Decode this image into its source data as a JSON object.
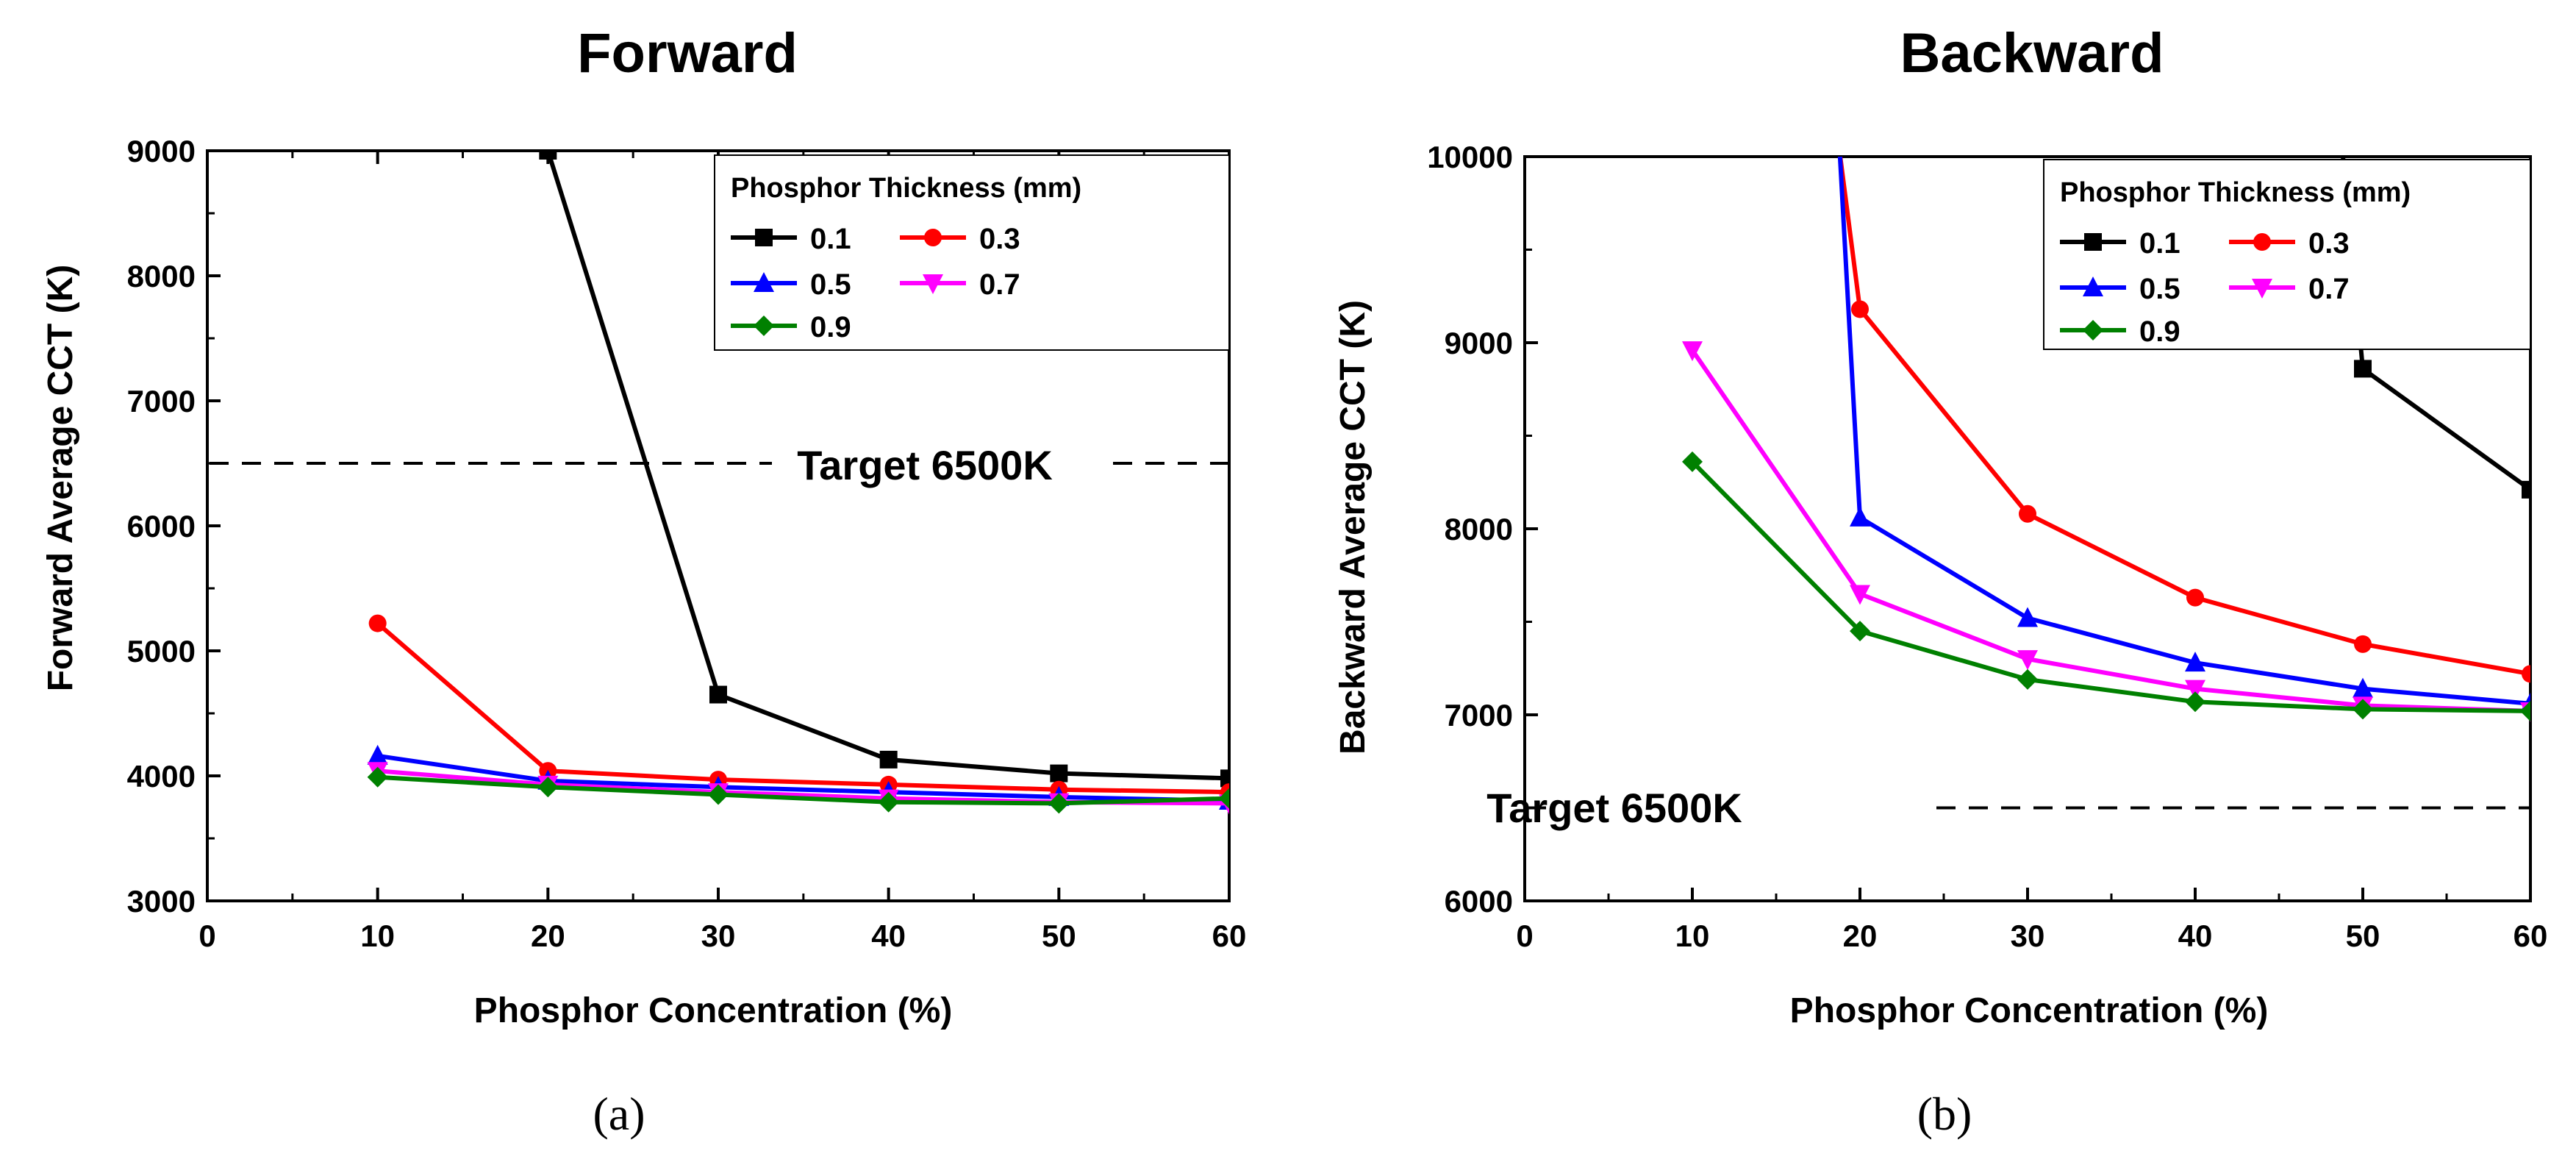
{
  "chart_data": [
    {
      "type": "line",
      "id": "a",
      "title": "Forward",
      "sublabel": "(a)",
      "xlabel": "Phosphor Concentration (%)",
      "ylabel": "Forward Average CCT (K)",
      "xlim": [
        0,
        60
      ],
      "ylim": [
        3000,
        9000
      ],
      "xticks": [
        0,
        10,
        20,
        30,
        40,
        50,
        60
      ],
      "yticks": [
        3000,
        4000,
        5000,
        6000,
        7000,
        8000,
        9000
      ],
      "x": [
        10,
        20,
        30,
        40,
        50,
        60
      ],
      "legend_title": "Phosphor Thickness (mm)",
      "legend_position": "top-right",
      "target": {
        "value": 6500,
        "label": "Target 6500K"
      },
      "series": [
        {
          "name": "0.1",
          "color": "#000000",
          "marker": "square",
          "values": [
            null,
            9000,
            4650,
            4130,
            4020,
            3980
          ]
        },
        {
          "name": "0.3",
          "color": "#ff0000",
          "marker": "circle",
          "values": [
            5220,
            4040,
            3970,
            3930,
            3890,
            3870
          ]
        },
        {
          "name": "0.5",
          "color": "#0000ff",
          "marker": "triangle-up",
          "values": [
            4160,
            3960,
            3910,
            3870,
            3830,
            3800
          ]
        },
        {
          "name": "0.7",
          "color": "#ff00ff",
          "marker": "triangle-down",
          "values": [
            4040,
            3930,
            3870,
            3820,
            3790,
            3780
          ]
        },
        {
          "name": "0.9",
          "color": "#008000",
          "marker": "diamond",
          "values": [
            3990,
            3910,
            3850,
            3790,
            3780,
            3820
          ]
        }
      ]
    },
    {
      "type": "line",
      "id": "b",
      "title": "Backward",
      "sublabel": "(b)",
      "xlabel": "Phosphor Concentration (%)",
      "ylabel": "Backward Average CCT (K)",
      "xlim": [
        0,
        60
      ],
      "ylim": [
        6000,
        10000
      ],
      "xticks": [
        0,
        10,
        20,
        30,
        40,
        50,
        60
      ],
      "yticks": [
        6000,
        7000,
        8000,
        9000,
        10000
      ],
      "x": [
        10,
        20,
        30,
        40,
        50,
        60
      ],
      "legend_title": "Phosphor Thickness (mm)",
      "legend_position": "top-right",
      "target": {
        "value": 6500,
        "label": "Target 6500K"
      },
      "series": [
        {
          "name": "0.1",
          "color": "#000000",
          "marker": "square",
          "values": [
            null,
            null,
            null,
            null,
            8860,
            8210
          ]
        },
        {
          "name": "0.3",
          "color": "#ff0000",
          "marker": "circle",
          "values": [
            null,
            9180,
            8080,
            7630,
            7380,
            7220
          ]
        },
        {
          "name": "0.5",
          "color": "#0000ff",
          "marker": "triangle-up",
          "values": [
            null,
            8060,
            7520,
            7280,
            7140,
            7060
          ]
        },
        {
          "name": "0.7",
          "color": "#ff00ff",
          "marker": "triangle-down",
          "values": [
            8960,
            7650,
            7300,
            7140,
            7050,
            7020
          ]
        },
        {
          "name": "0.9",
          "color": "#008000",
          "marker": "diamond",
          "values": [
            8360,
            7450,
            7190,
            7070,
            7030,
            7020
          ]
        }
      ]
    }
  ]
}
